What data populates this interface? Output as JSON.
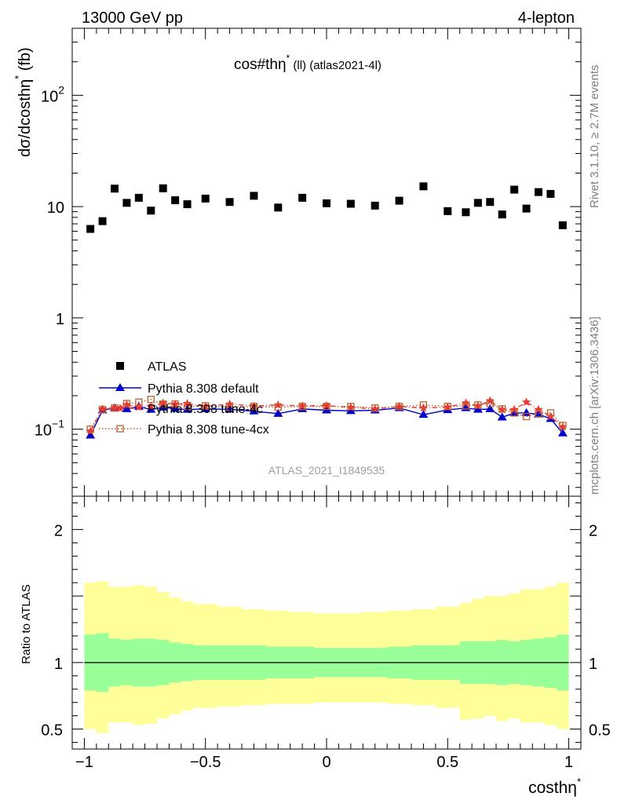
{
  "header": {
    "left": "13000 GeV pp",
    "right": "4-lepton"
  },
  "side_labels": {
    "rivet": "Rivet 3.1.10, ≥ 2.7M events",
    "mcplots": "mcplots.cern.ch [arXiv:1306.3436]"
  },
  "chart_data": [
    {
      "type": "scatter",
      "panel": "main",
      "title": "cos#thη* (ll) (atlas2021-4l)",
      "title_main": "cos#thη",
      "title_sup": "*",
      "title_rest": " (ll) (atlas2021-4l)",
      "ylabel": "dσ/dcosthη* (fb)",
      "ylabel_main": "dσ/dcosthη",
      "ylabel_sup": "*",
      "ylabel_rest": " (fb)",
      "xlabel": "costhη*",
      "xlabel_main": "costhη",
      "xlabel_sup": "*",
      "yscale": "log",
      "xlim": [
        -1.05,
        1.05
      ],
      "ylim": [
        0.025,
        400
      ],
      "yticks": [
        {
          "value": 0.1,
          "base": "10",
          "exp": "−1"
        },
        {
          "value": 1,
          "label": "1"
        },
        {
          "value": 10,
          "label": "10"
        },
        {
          "value": 100,
          "base": "10",
          "exp": "2"
        }
      ],
      "watermark": "ATLAS_2021_I1849535",
      "legend_position": "left-middle",
      "x": [
        -0.975,
        -0.925,
        -0.875,
        -0.825,
        -0.775,
        -0.725,
        -0.675,
        -0.625,
        -0.575,
        -0.5,
        -0.4,
        -0.3,
        -0.2,
        -0.1,
        0.0,
        0.1,
        0.2,
        0.3,
        0.4,
        0.5,
        0.575,
        0.625,
        0.675,
        0.725,
        0.775,
        0.825,
        0.875,
        0.925,
        0.975
      ],
      "series": [
        {
          "name": "ATLAS",
          "marker": "square",
          "color": "#000000",
          "values": [
            6.3,
            7.4,
            14.5,
            10.8,
            12.0,
            9.2,
            14.6,
            11.4,
            10.5,
            11.8,
            11.0,
            12.5,
            9.8,
            12.0,
            10.7,
            10.6,
            10.2,
            11.3,
            15.2,
            9.1,
            8.9,
            10.8,
            11.0,
            8.5,
            14.2,
            9.6,
            13.5,
            13.0,
            6.8
          ]
        },
        {
          "name": "Pythia 8.308 default",
          "marker": "triangle",
          "line": "solid",
          "color": "#0000cc",
          "values": [
            0.088,
            0.148,
            0.155,
            0.152,
            0.16,
            0.15,
            0.157,
            0.153,
            0.15,
            0.152,
            0.151,
            0.145,
            0.138,
            0.152,
            0.148,
            0.146,
            0.148,
            0.155,
            0.135,
            0.149,
            0.155,
            0.15,
            0.152,
            0.128,
            0.14,
            0.14,
            0.136,
            0.124,
            0.092
          ]
        },
        {
          "name": "Pythia 8.308 tune-4c",
          "marker": "star",
          "line": "dashdot",
          "color": "#ee3333",
          "values": [
            0.096,
            0.152,
            0.155,
            0.166,
            0.158,
            0.16,
            0.172,
            0.168,
            0.17,
            0.16,
            0.168,
            0.162,
            0.165,
            0.162,
            0.163,
            0.157,
            0.152,
            0.16,
            0.155,
            0.158,
            0.172,
            0.162,
            0.18,
            0.15,
            0.15,
            0.175,
            0.15,
            0.13,
            0.105
          ]
        },
        {
          "name": "Pythia 8.308 tune-4cx",
          "marker": "open-square",
          "line": "dotted",
          "color": "#c0602a",
          "values": [
            0.1,
            0.15,
            0.155,
            0.17,
            0.175,
            0.185,
            0.168,
            0.168,
            0.16,
            0.162,
            0.158,
            0.16,
            0.158,
            0.16,
            0.16,
            0.16,
            0.155,
            0.16,
            0.165,
            0.16,
            0.162,
            0.165,
            0.17,
            0.152,
            0.14,
            0.13,
            0.138,
            0.14,
            0.108
          ]
        }
      ]
    },
    {
      "type": "area",
      "panel": "ratio",
      "ylabel": "Ratio to ATLAS",
      "xlabel": "costhη*",
      "xlim": [
        -1.05,
        1.05
      ],
      "ylim": [
        0.35,
        2.25
      ],
      "yticks": [
        {
          "value": 0.5,
          "label": "0.5"
        },
        {
          "value": 1,
          "label": "1"
        },
        {
          "value": 2,
          "label": "2"
        }
      ],
      "xticks": [
        {
          "value": -1,
          "label": "−1"
        },
        {
          "value": -0.5,
          "label": "−0.5"
        },
        {
          "value": 0,
          "label": "0"
        },
        {
          "value": 0.5,
          "label": "0.5"
        },
        {
          "value": 1,
          "label": "1"
        }
      ],
      "reference_line": 1,
      "bin_edges": [
        -1.0,
        -0.95,
        -0.9,
        -0.85,
        -0.8,
        -0.75,
        -0.7,
        -0.65,
        -0.6,
        -0.55,
        -0.45,
        -0.35,
        -0.25,
        -0.15,
        -0.05,
        0.05,
        0.15,
        0.25,
        0.35,
        0.45,
        0.55,
        0.6,
        0.65,
        0.7,
        0.75,
        0.8,
        0.85,
        0.9,
        0.95,
        1.0
      ],
      "band_stat": {
        "name": "stat",
        "color": "#99ff99",
        "low": [
          0.79,
          0.78,
          0.82,
          0.83,
          0.82,
          0.82,
          0.83,
          0.85,
          0.86,
          0.87,
          0.87,
          0.87,
          0.88,
          0.88,
          0.89,
          0.89,
          0.89,
          0.88,
          0.87,
          0.87,
          0.84,
          0.84,
          0.84,
          0.83,
          0.84,
          0.83,
          0.82,
          0.81,
          0.79
        ],
        "high": [
          1.21,
          1.22,
          1.18,
          1.17,
          1.18,
          1.18,
          1.17,
          1.15,
          1.14,
          1.13,
          1.13,
          1.13,
          1.12,
          1.12,
          1.11,
          1.11,
          1.11,
          1.12,
          1.13,
          1.13,
          1.16,
          1.16,
          1.16,
          1.17,
          1.16,
          1.17,
          1.18,
          1.19,
          1.21
        ]
      },
      "band_total": {
        "name": "total",
        "color": "#ffff99",
        "low": [
          0.5,
          0.47,
          0.55,
          0.55,
          0.53,
          0.54,
          0.58,
          0.61,
          0.64,
          0.66,
          0.67,
          0.68,
          0.69,
          0.69,
          0.7,
          0.7,
          0.7,
          0.69,
          0.68,
          0.66,
          0.57,
          0.58,
          0.6,
          0.56,
          0.58,
          0.55,
          0.55,
          0.53,
          0.5
        ],
        "high": [
          1.6,
          1.61,
          1.57,
          1.57,
          1.58,
          1.57,
          1.53,
          1.49,
          1.46,
          1.44,
          1.42,
          1.4,
          1.39,
          1.38,
          1.37,
          1.37,
          1.38,
          1.39,
          1.4,
          1.42,
          1.45,
          1.48,
          1.5,
          1.5,
          1.52,
          1.55,
          1.55,
          1.57,
          1.6
        ]
      }
    }
  ]
}
